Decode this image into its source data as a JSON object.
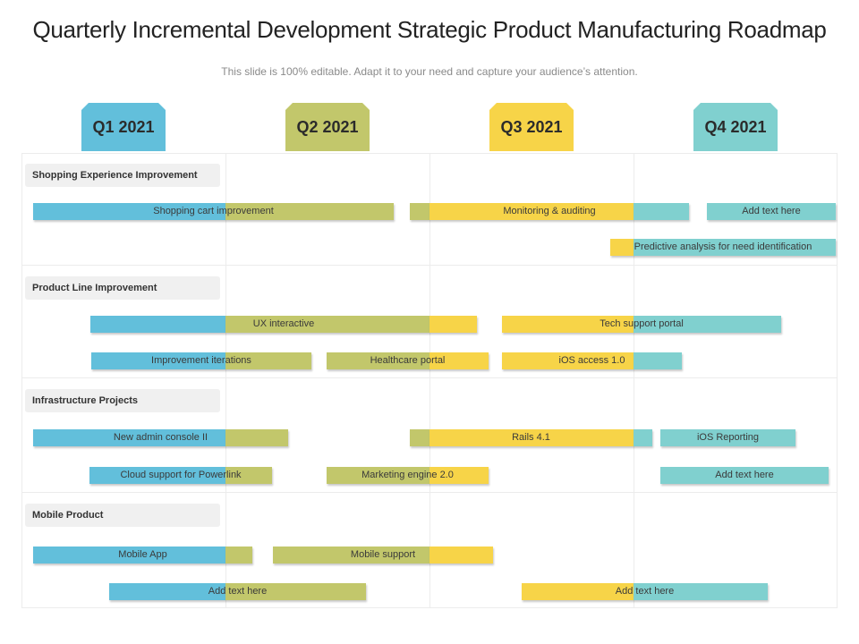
{
  "title": "Quarterly Incremental Development Strategic Product Manufacturing Roadmap",
  "subtitle": "This slide is 100% editable. Adapt it to your need and capture your audience’s attention.",
  "colors": {
    "blue": "#62bfdb",
    "green": "#c2c76b",
    "yellow": "#f7d448",
    "teal": "#80d0cf"
  },
  "quarters": [
    {
      "label": "Q1 2021",
      "color": "#62bfdb"
    },
    {
      "label": "Q2 2021",
      "color": "#c2c76b"
    },
    {
      "label": "Q3 2021",
      "color": "#f7d448"
    },
    {
      "label": "Q4 2021",
      "color": "#80d0cf"
    }
  ],
  "sections": [
    {
      "label": "Shopping Experience  Improvement",
      "rows": [
        [
          {
            "label": "Shopping cart improvement"
          },
          {
            "label": "Monitoring  &  auditing"
          },
          {
            "label": "Add text here"
          }
        ],
        [
          {
            "label": "Predictive analysis  for need identification"
          }
        ]
      ]
    },
    {
      "label": "Product Line Improvement",
      "rows": [
        [
          {
            "label": "UX interactive"
          },
          {
            "label": "Tech support portal"
          }
        ],
        [
          {
            "label": "Improvement iterations"
          },
          {
            "label": "Healthcare  portal"
          },
          {
            "label": "iOS access  1.0"
          }
        ]
      ]
    },
    {
      "label": "Infrastructure  Projects",
      "rows": [
        [
          {
            "label": "New admin  console II"
          },
          {
            "label": "Rails  4.1"
          },
          {
            "label": "iOS Reporting"
          }
        ],
        [
          {
            "label": "Cloud support for Powerlink"
          },
          {
            "label": "Marketing  engine 2.0"
          },
          {
            "label": "Add text here"
          }
        ]
      ]
    },
    {
      "label": "Mobile Product",
      "rows": [
        [
          {
            "label": "Mobile App"
          },
          {
            "label": "Mobile support"
          }
        ],
        [
          {
            "label": "Add text here"
          },
          {
            "label": "Add text here"
          }
        ]
      ]
    }
  ]
}
